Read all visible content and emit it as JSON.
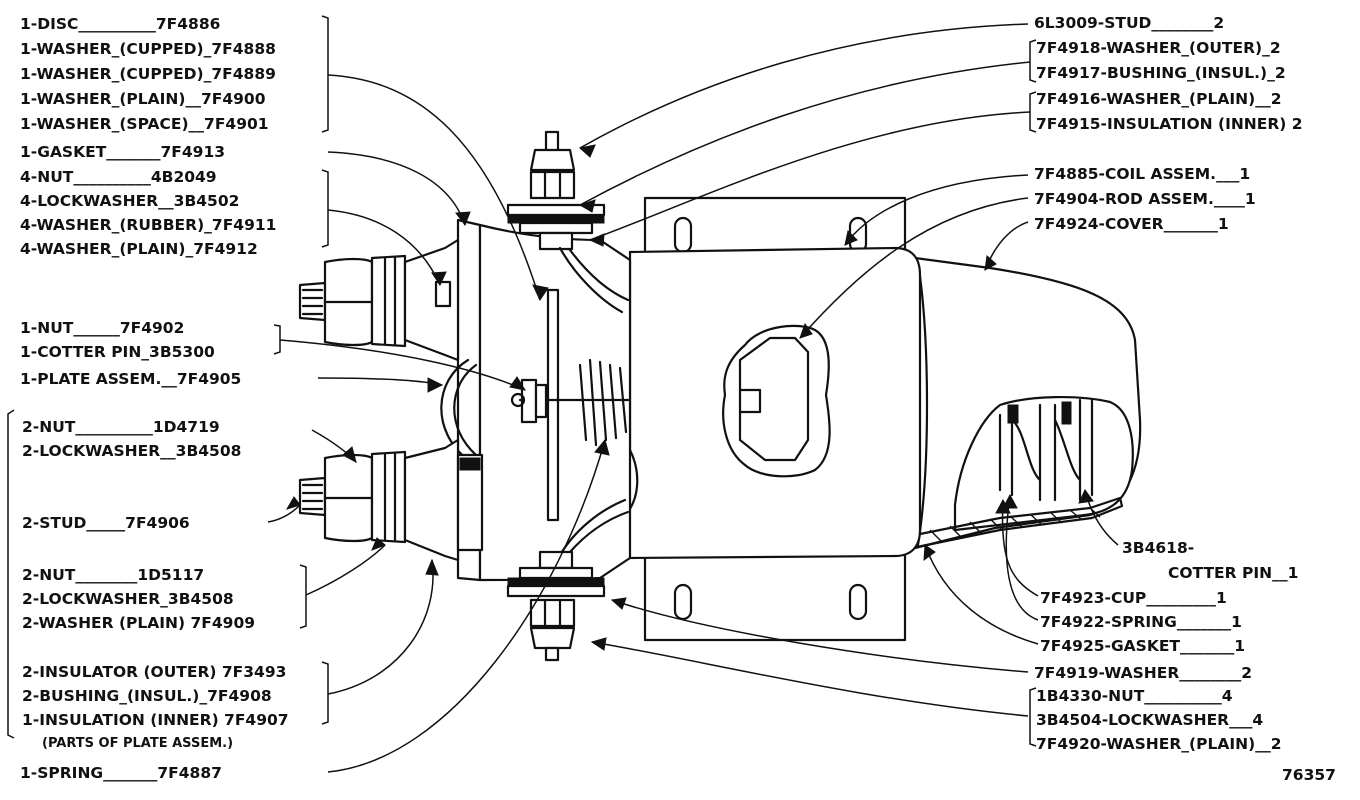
{
  "labels": {
    "left": [
      {
        "id": "disc",
        "text": "1-DISC__________7F4886"
      },
      {
        "id": "washer-cupped-a",
        "text": "1-WASHER_(CUPPED)_7F4888"
      },
      {
        "id": "washer-cupped-b",
        "text": "1-WASHER_(CUPPED)_7F4889"
      },
      {
        "id": "washer-plain",
        "text": "1-WASHER_(PLAIN)__7F4900"
      },
      {
        "id": "washer-space",
        "text": "1-WASHER_(SPACE)__7F4901"
      },
      {
        "id": "gasket",
        "text": "1-GASKET_______7F4913"
      },
      {
        "id": "nut-4",
        "text": "4-NUT__________4B2049"
      },
      {
        "id": "lockwasher-4",
        "text": "4-LOCKWASHER__3B4502"
      },
      {
        "id": "washer-rubber-4",
        "text": "4-WASHER_(RUBBER)_7F4911"
      },
      {
        "id": "washer-plain-4",
        "text": "4-WASHER_(PLAIN)_7F4912"
      },
      {
        "id": "nut-1",
        "text": "1-NUT______7F4902"
      },
      {
        "id": "cotter-pin-1",
        "text": "1-COTTER PIN_3B5300"
      },
      {
        "id": "plate-assem",
        "text": "1-PLATE ASSEM.__7F4905"
      },
      {
        "id": "nut-2a",
        "text": "2-NUT__________1D4719"
      },
      {
        "id": "lockwasher-2a",
        "text": "2-LOCKWASHER__3B4508"
      },
      {
        "id": "stud-2",
        "text": "2-STUD_____7F4906"
      },
      {
        "id": "nut-2b",
        "text": "2-NUT________1D5117"
      },
      {
        "id": "lockwasher-2b",
        "text": "2-LOCKWASHER_3B4508"
      },
      {
        "id": "washer-plain-2",
        "text": "2-WASHER (PLAIN) 7F4909"
      },
      {
        "id": "insulator-outer",
        "text": "2-INSULATOR (OUTER) 7F3493"
      },
      {
        "id": "bushing-insul",
        "text": "2-BUSHING_(INSUL.)_7F4908"
      },
      {
        "id": "insulation-inner",
        "text": "1-INSULATION (INNER) 7F4907"
      },
      {
        "id": "parts-note",
        "text": "(PARTS OF PLATE ASSEM.)"
      },
      {
        "id": "spring-1",
        "text": "1-SPRING_______7F4887"
      }
    ],
    "right": [
      {
        "id": "stud-6l",
        "text": "6L3009-STUD________2"
      },
      {
        "id": "washer-outer",
        "text": "7F4918-WASHER_(OUTER)_2"
      },
      {
        "id": "bushing-insul-r",
        "text": "7F4917-BUSHING_(INSUL.)_2"
      },
      {
        "id": "washer-plain-r",
        "text": "7F4916-WASHER_(PLAIN)__2"
      },
      {
        "id": "insulation-inner-r",
        "text": "7F4915-INSULATION (INNER) 2"
      },
      {
        "id": "coil-assem",
        "text": "7F4885-COIL ASSEM.___1"
      },
      {
        "id": "rod-assem",
        "text": "7F4904-ROD ASSEM.____1"
      },
      {
        "id": "cover",
        "text": "7F4924-COVER_______1"
      },
      {
        "id": "cotter-pin-a",
        "text": "3B4618-"
      },
      {
        "id": "cotter-pin-b",
        "text": "COTTER PIN__1"
      },
      {
        "id": "cup",
        "text": "7F4923-CUP_________1"
      },
      {
        "id": "spring-r",
        "text": "7F4922-SPRING_______1"
      },
      {
        "id": "gasket-r",
        "text": "7F4925-GASKET_______1"
      },
      {
        "id": "washer-7f4919",
        "text": "7F4919-WASHER________2"
      },
      {
        "id": "nut-1b4330",
        "text": "1B4330-NUT__________4"
      },
      {
        "id": "lockwasher-3b4504",
        "text": "3B4504-LOCKWASHER___4"
      },
      {
        "id": "washer-plain-7f4920",
        "text": "7F4920-WASHER_(PLAIN)__2"
      }
    ]
  },
  "figure_number": "76357"
}
